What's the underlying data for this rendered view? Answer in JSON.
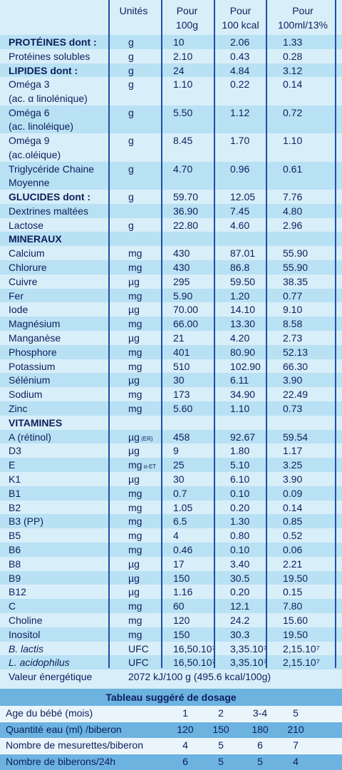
{
  "headers": {
    "units": "Unités",
    "col1": [
      "Pour",
      "100g"
    ],
    "col2": [
      "Pour",
      "100 kcal"
    ],
    "col3": [
      "Pour",
      "100ml/13%"
    ]
  },
  "rows": [
    {
      "name": [
        "PROTÉINES dont :"
      ],
      "unit": "g",
      "v1": "10",
      "v2": "2.06",
      "v3": "1.33",
      "bold": true,
      "hl": true
    },
    {
      "name": [
        "Protéines solubles"
      ],
      "unit": "g",
      "v1": "2.10",
      "v2": "0.43",
      "v3": "0.28"
    },
    {
      "name": [
        "LIPIDES dont :"
      ],
      "unit": "g",
      "v1": "24",
      "v2": "4.84",
      "v3": "3.12",
      "bold": true,
      "hl": true
    },
    {
      "name": [
        "Oméga 3",
        "(ac. α linolénique)"
      ],
      "unit": "g",
      "v1": "1.10",
      "v2": "0.22",
      "v3": "0.14"
    },
    {
      "name": [
        "Oméga 6",
        "(ac. linoléique)"
      ],
      "unit": "g",
      "v1": "5.50",
      "v2": "1.12",
      "v3": "0.72",
      "hl": true
    },
    {
      "name": [
        "Oméga 9",
        "(ac.oléique)"
      ],
      "unit": "g",
      "v1": "8.45",
      "v2": "1.70",
      "v3": "1.10"
    },
    {
      "name": [
        "Triglycéride Chaine",
        "Moyenne"
      ],
      "unit": "g",
      "v1": "4.70",
      "v2": "0.96",
      "v3": "0.61",
      "hl": true
    },
    {
      "name": [
        "GLUCIDES dont :"
      ],
      "unit": "g",
      "v1": "59.70",
      "v2": "12.05",
      "v3": "7.76",
      "bold": true
    },
    {
      "name": [
        "Dextrines maltées"
      ],
      "unit": "",
      "v1": "36.90",
      "v2": "7.45",
      "v3": "4.80",
      "hl": true
    },
    {
      "name": [
        "Lactose"
      ],
      "unit": "g",
      "v1": "22.80",
      "v2": "4.60",
      "v3": "2.96"
    },
    {
      "name": [
        "MINERAUX"
      ],
      "unit": "",
      "v1": "",
      "v2": "",
      "v3": "",
      "bold": true,
      "hl": true
    },
    {
      "name": [
        "Calcium"
      ],
      "unit": "mg",
      "v1": "430",
      "v2": "87.01",
      "v3": "55.90"
    },
    {
      "name": [
        "Chlorure"
      ],
      "unit": "mg",
      "v1": "430",
      "v2": "86.8",
      "v3": "55.90",
      "hl": true
    },
    {
      "name": [
        "Cuivre"
      ],
      "unit": "µg",
      "v1": "295",
      "v2": "59.50",
      "v3": "38.35"
    },
    {
      "name": [
        "Fer"
      ],
      "unit": "mg",
      "v1": "5.90",
      "v2": "1.20",
      "v3": "0.77",
      "hl": true
    },
    {
      "name": [
        "Iode"
      ],
      "unit": "µg",
      "v1": "70.00",
      "v2": "14.10",
      "v3": "9.10"
    },
    {
      "name": [
        "Magnésium"
      ],
      "unit": "mg",
      "v1": "66.00",
      "v2": "13.30",
      "v3": "8.58",
      "hl": true
    },
    {
      "name": [
        "Manganèse"
      ],
      "unit": "µg",
      "v1": "21",
      "v2": "4.20",
      "v3": "2.73"
    },
    {
      "name": [
        "Phosphore"
      ],
      "unit": "mg",
      "v1": "401",
      "v2": "80.90",
      "v3": "52.13",
      "hl": true
    },
    {
      "name": [
        "Potassium"
      ],
      "unit": "mg",
      "v1": "510",
      "v2": "102.90",
      "v3": "66.30"
    },
    {
      "name": [
        "Sélénium"
      ],
      "unit": "µg",
      "v1": "30",
      "v2": "6.11",
      "v3": "3.90",
      "hl": true
    },
    {
      "name": [
        "Sodium"
      ],
      "unit": "mg",
      "v1": "173",
      "v2": "34.90",
      "v3": "22.49"
    },
    {
      "name": [
        "Zinc"
      ],
      "unit": "mg",
      "v1": "5.60",
      "v2": "1.10",
      "v3": "0.73",
      "hl": true
    },
    {
      "name": [
        "VITAMINES"
      ],
      "unit": "",
      "v1": "",
      "v2": "",
      "v3": "",
      "bold": true
    },
    {
      "name": [
        "A (rétinol)"
      ],
      "unit": "µg",
      "unit_sub": "(ER)",
      "v1": "458",
      "v2": "92.67",
      "v3": "59.54",
      "hl": true
    },
    {
      "name": [
        "D3"
      ],
      "unit": "µg",
      "v1": "9",
      "v2": "1.80",
      "v3": "1.17"
    },
    {
      "name": [
        "E"
      ],
      "unit": "mg",
      "unit_sub": "α-ET",
      "v1": "25",
      "v2": "5.10",
      "v3": "3.25",
      "hl": true
    },
    {
      "name": [
        "K1"
      ],
      "unit": "µg",
      "v1": "30",
      "v2": "6.10",
      "v3": "3.90"
    },
    {
      "name": [
        "B1"
      ],
      "unit": "mg",
      "v1": "0.7",
      "v2": "0.10",
      "v3": "0.09",
      "hl": true
    },
    {
      "name": [
        "B2"
      ],
      "unit": "mg",
      "v1": "1.05",
      "v2": "0.20",
      "v3": "0.14"
    },
    {
      "name": [
        "B3 (PP)"
      ],
      "unit": "mg",
      "v1": "6.5",
      "v2": "1.30",
      "v3": "0.85",
      "hl": true
    },
    {
      "name": [
        "B5"
      ],
      "unit": "mg",
      "v1": "4",
      "v2": "0.80",
      "v3": "0.52"
    },
    {
      "name": [
        "B6"
      ],
      "unit": "mg",
      "v1": "0.46",
      "v2": "0.10",
      "v3": "0.06",
      "hl": true
    },
    {
      "name": [
        "B8"
      ],
      "unit": "µg",
      "v1": "17",
      "v2": "3.40",
      "v3": "2.21"
    },
    {
      "name": [
        "B9"
      ],
      "unit": "µg",
      "v1": "150",
      "v2": "30.5",
      "v3": "19.50",
      "hl": true
    },
    {
      "name": [
        "B12"
      ],
      "unit": "µg",
      "v1": "1.16",
      "v2": "0.20",
      "v3": "0.15"
    },
    {
      "name": [
        "C"
      ],
      "unit": "mg",
      "v1": "60",
      "v2": "12.1",
      "v3": "7.80",
      "hl": true
    },
    {
      "name": [
        "Choline"
      ],
      "unit": "mg",
      "v1": "120",
      "v2": "24.2",
      "v3": "15.60"
    },
    {
      "name": [
        "Inositol"
      ],
      "unit": "mg",
      "v1": "150",
      "v2": "30.3",
      "v3": "19.50",
      "hl": true
    },
    {
      "name": [
        "B. lactis"
      ],
      "unit": "UFC",
      "v1": "16,50.10⁷",
      "v2": "3,35.10⁷",
      "v3": "2,15.10⁷",
      "ital": true
    },
    {
      "name": [
        "L. acidophilus"
      ],
      "unit": "UFC",
      "v1": "16,50.10⁷",
      "v2": "3,35.10⁷",
      "v3": "2,15.10⁷",
      "ital": true,
      "hl": true
    }
  ],
  "energy": {
    "label": "Valeur énergétique",
    "value": "2072 kJ/100 g (495.6 kcal/100g)"
  },
  "dosage": {
    "title": "Tableau suggéré de dosage",
    "rows": [
      {
        "label": "Age du bébé (mois)",
        "values": [
          "1",
          "2",
          "3-4",
          "5"
        ]
      },
      {
        "label": "Quantité eau (ml) /biberon",
        "values": [
          "120",
          "150",
          "180",
          "210"
        ]
      },
      {
        "label": "Nombre de mesurettes/biberon",
        "values": [
          "4",
          "5",
          "6",
          "7"
        ]
      },
      {
        "label": "Nombre de biberons/24h",
        "values": [
          "6",
          "5",
          "5",
          "4"
        ]
      }
    ]
  }
}
